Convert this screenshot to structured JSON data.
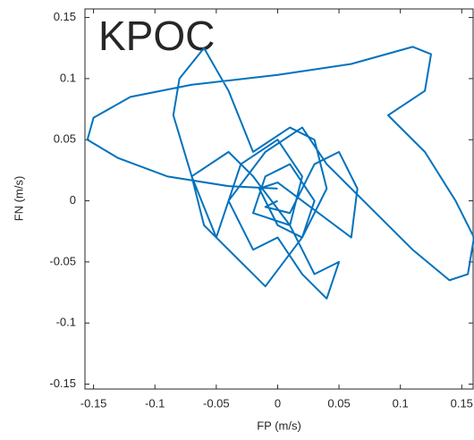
{
  "chart_data": {
    "type": "line",
    "annotation": "KPOC",
    "x_label": "FP (m/s)",
    "y_label": "FN (m/s)",
    "xlim": [
      -0.157,
      0.16
    ],
    "ylim": [
      -0.154,
      0.157
    ],
    "xticks": [
      -0.15,
      -0.1,
      -0.05,
      0,
      0.05,
      0.1,
      0.15
    ],
    "yticks": [
      -0.15,
      -0.1,
      -0.05,
      0,
      0.05,
      0.1,
      0.15
    ],
    "color": "#0072bd",
    "x": [
      0,
      -0.04,
      -0.09,
      -0.13,
      -0.155,
      -0.15,
      -0.12,
      -0.07,
      0,
      0.06,
      0.11,
      0.125,
      0.12,
      0.09,
      0.12,
      0.145,
      0.16,
      0.155,
      0.14,
      0.11,
      0.07,
      0.04,
      0.02,
      -0.01,
      -0.04,
      -0.05,
      -0.06,
      -0.07,
      -0.085,
      -0.08,
      -0.06,
      -0.04,
      -0.02,
      0.01,
      0.03,
      0.04,
      0.02,
      -0.01,
      -0.03,
      -0.05,
      -0.07,
      -0.04,
      -0.02,
      0.01,
      0.03,
      0.05,
      0.04,
      0.02,
      0,
      -0.02,
      -0.04,
      -0.03,
      0,
      0.02,
      0.01,
      -0.02,
      -0.01,
      0.01,
      0.03,
      0.02,
      0,
      -0.015,
      0,
      0.06,
      0.065,
      0.05,
      0.03,
      0.01,
      -0.01,
      0
    ],
    "values": [
      0.01,
      0.012,
      0.02,
      0.035,
      0.05,
      0.068,
      0.085,
      0.095,
      0.103,
      0.112,
      0.126,
      0.12,
      0.09,
      0.07,
      0.04,
      0,
      -0.03,
      -0.06,
      -0.065,
      -0.04,
      0,
      0.03,
      0.06,
      0.04,
      0,
      -0.03,
      -0.02,
      0.02,
      0.07,
      0.1,
      0.125,
      0.09,
      0.04,
      0.06,
      0.05,
      0.01,
      -0.03,
      -0.07,
      -0.05,
      -0.03,
      0.02,
      0.04,
      0.02,
      -0.02,
      -0.06,
      -0.05,
      -0.08,
      -0.06,
      -0.03,
      -0.04,
      0,
      0.03,
      0.05,
      0.02,
      -0.02,
      -0.01,
      0.02,
      0.03,
      0,
      -0.03,
      -0.02,
      0.01,
      0.015,
      -0.03,
      0.01,
      0.04,
      0.03,
      -0.01,
      -0.005,
      0
    ]
  }
}
